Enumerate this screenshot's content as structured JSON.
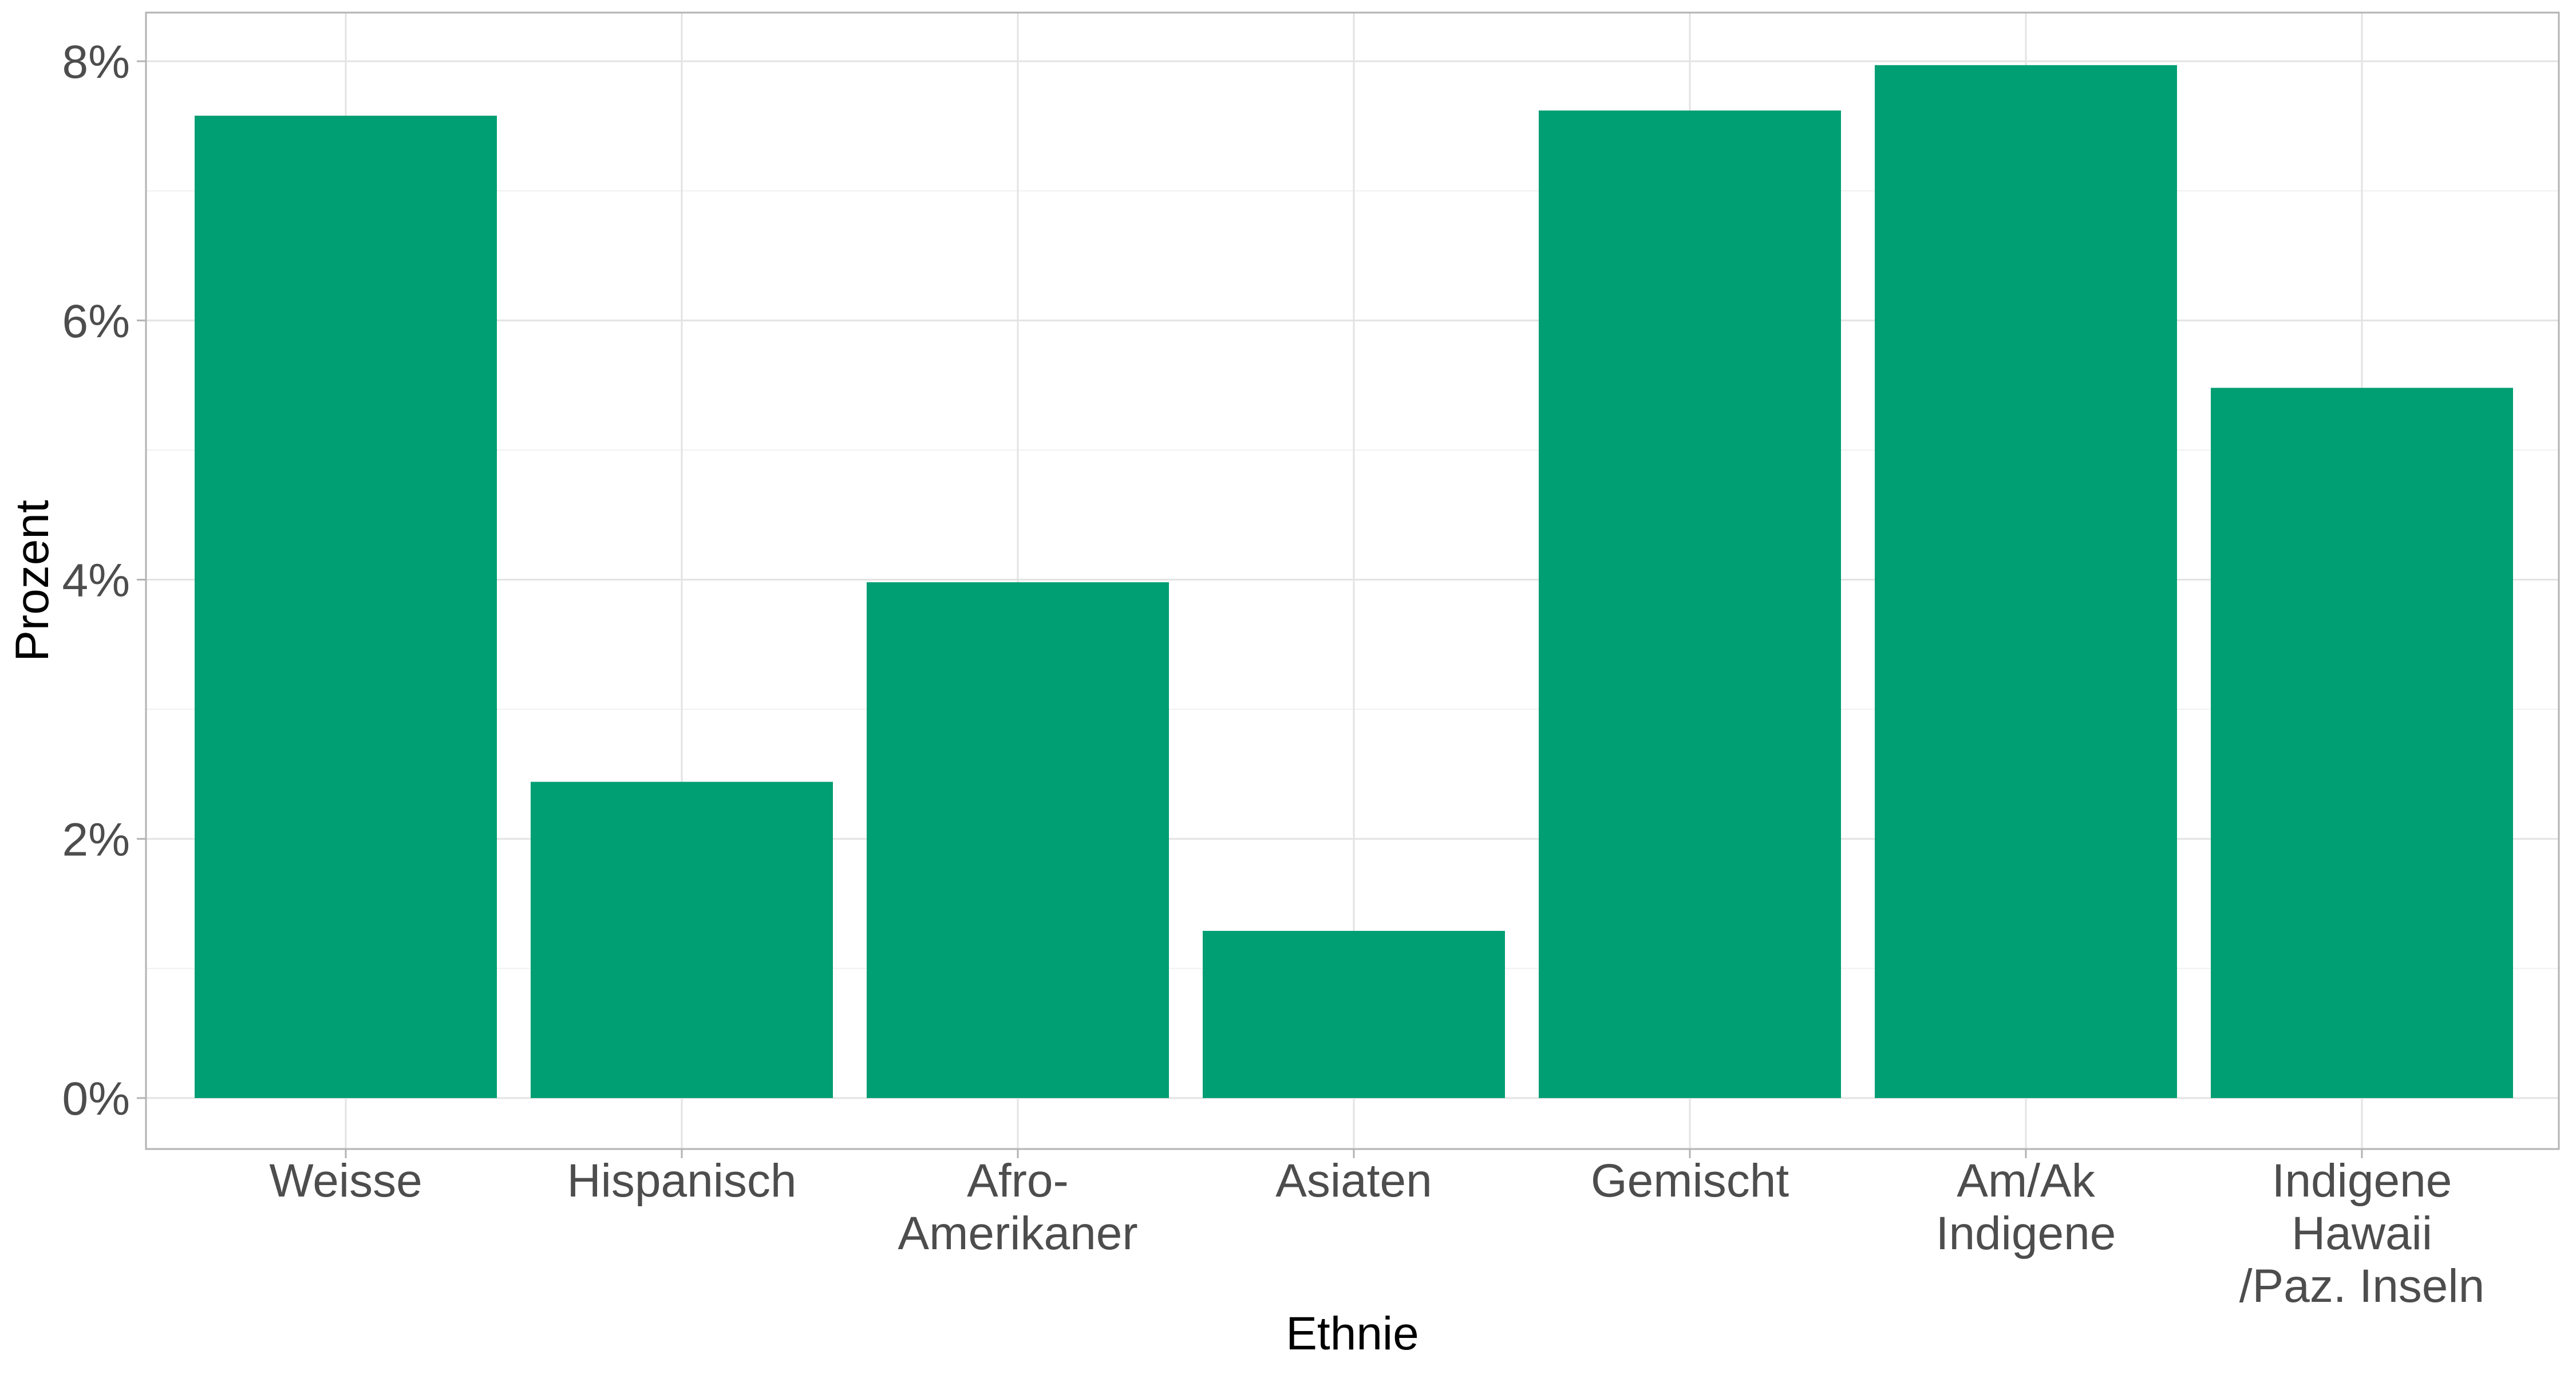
{
  "chart_data": {
    "type": "bar",
    "categories": [
      [
        "Weisse"
      ],
      [
        "Hispanisch"
      ],
      [
        "Afro-",
        "Amerikaner"
      ],
      [
        "Asiaten"
      ],
      [
        "Gemischt"
      ],
      [
        "Am/Ak",
        "Indigene"
      ],
      [
        "Indigene",
        "Hawaii",
        "/Paz. Inseln"
      ]
    ],
    "values": [
      7.58,
      2.44,
      3.98,
      1.29,
      7.62,
      7.97,
      5.48
    ],
    "xlabel": "Ethnie",
    "ylabel": "Prozent",
    "ylim": [
      0,
      8
    ],
    "yticks": [
      0,
      2,
      4,
      6,
      8
    ],
    "ytick_labels": [
      "0%",
      "2%",
      "4%",
      "6%",
      "8%"
    ],
    "bar_color": "#009E73",
    "grid": true,
    "legend": "none"
  }
}
